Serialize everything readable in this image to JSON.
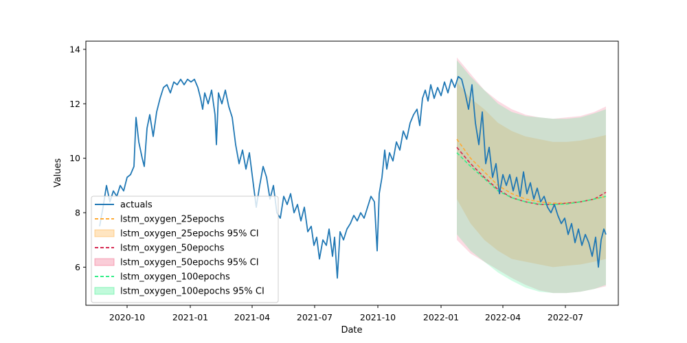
{
  "chart_data": {
    "type": "line",
    "title": "",
    "xlabel": "Date",
    "ylabel": "Values",
    "xlim": [
      "2020-08-02",
      "2022-09-16"
    ],
    "ylim": [
      4.6,
      14.3
    ],
    "x_ticks": [
      "2020-10",
      "2021-01",
      "2021-04",
      "2021-07",
      "2021-10",
      "2022-01",
      "2022-04",
      "2022-07"
    ],
    "y_ticks": [
      6,
      8,
      10,
      12,
      14
    ],
    "grid": false,
    "legend_position": "lower-left",
    "legend": [
      {
        "label": "actuals",
        "kind": "line",
        "color": "#1f77b4"
      },
      {
        "label": "lstm_oxygen_25epochs",
        "kind": "dash",
        "color": "#ffaa33"
      },
      {
        "label": "lstm_oxygen_25epochs 95% CI",
        "kind": "patch",
        "color": "#ffaa33"
      },
      {
        "label": "lstm_oxygen_50epochs",
        "kind": "dash",
        "color": "#d62750"
      },
      {
        "label": "lstm_oxygen_50epochs 95% CI",
        "kind": "patch",
        "color": "#f05a7e"
      },
      {
        "label": "lstm_oxygen_100epochs",
        "kind": "dash",
        "color": "#33ee88"
      },
      {
        "label": "lstm_oxygen_100epochs 95% CI",
        "kind": "patch",
        "color": "#33ee88"
      }
    ],
    "actuals": {
      "name": "actuals",
      "color": "#1f77b4",
      "points": [
        [
          "2020-08-22",
          7.5
        ],
        [
          "2020-08-27",
          8.2
        ],
        [
          "2020-09-01",
          9.0
        ],
        [
          "2020-09-06",
          8.4
        ],
        [
          "2020-09-11",
          8.8
        ],
        [
          "2020-09-16",
          8.6
        ],
        [
          "2020-09-21",
          9.0
        ],
        [
          "2020-09-26",
          8.8
        ],
        [
          "2020-10-01",
          9.3
        ],
        [
          "2020-10-06",
          9.4
        ],
        [
          "2020-10-11",
          9.7
        ],
        [
          "2020-10-14",
          11.5
        ],
        [
          "2020-10-18",
          10.6
        ],
        [
          "2020-10-23",
          10.0
        ],
        [
          "2020-10-26",
          9.7
        ],
        [
          "2020-10-30",
          11.1
        ],
        [
          "2020-11-03",
          11.6
        ],
        [
          "2020-11-08",
          10.8
        ],
        [
          "2020-11-13",
          11.7
        ],
        [
          "2020-11-18",
          12.2
        ],
        [
          "2020-11-23",
          12.6
        ],
        [
          "2020-11-28",
          12.7
        ],
        [
          "2020-12-03",
          12.4
        ],
        [
          "2020-12-08",
          12.8
        ],
        [
          "2020-12-13",
          12.7
        ],
        [
          "2020-12-18",
          12.9
        ],
        [
          "2020-12-23",
          12.7
        ],
        [
          "2020-12-28",
          12.9
        ],
        [
          "2021-01-02",
          12.8
        ],
        [
          "2021-01-07",
          12.9
        ],
        [
          "2021-01-12",
          12.6
        ],
        [
          "2021-01-16",
          12.2
        ],
        [
          "2021-01-19",
          11.8
        ],
        [
          "2021-01-22",
          12.4
        ],
        [
          "2021-01-27",
          12.0
        ],
        [
          "2021-02-01",
          12.5
        ],
        [
          "2021-02-06",
          11.6
        ],
        [
          "2021-02-08",
          10.5
        ],
        [
          "2021-02-11",
          12.4
        ],
        [
          "2021-02-16",
          12.0
        ],
        [
          "2021-02-21",
          12.5
        ],
        [
          "2021-02-26",
          11.9
        ],
        [
          "2021-03-03",
          11.5
        ],
        [
          "2021-03-08",
          10.5
        ],
        [
          "2021-03-13",
          9.8
        ],
        [
          "2021-03-18",
          10.3
        ],
        [
          "2021-03-23",
          9.6
        ],
        [
          "2021-03-28",
          10.2
        ],
        [
          "2021-04-02",
          9.2
        ],
        [
          "2021-04-07",
          8.2
        ],
        [
          "2021-04-12",
          9.0
        ],
        [
          "2021-04-17",
          9.7
        ],
        [
          "2021-04-22",
          9.3
        ],
        [
          "2021-04-27",
          8.5
        ],
        [
          "2021-05-02",
          9.0
        ],
        [
          "2021-05-07",
          8.0
        ],
        [
          "2021-05-12",
          7.8
        ],
        [
          "2021-05-17",
          8.6
        ],
        [
          "2021-05-22",
          8.3
        ],
        [
          "2021-05-27",
          8.7
        ],
        [
          "2021-06-01",
          8.0
        ],
        [
          "2021-06-06",
          8.3
        ],
        [
          "2021-06-11",
          7.7
        ],
        [
          "2021-06-16",
          8.2
        ],
        [
          "2021-06-21",
          7.3
        ],
        [
          "2021-06-26",
          7.5
        ],
        [
          "2021-06-30",
          6.8
        ],
        [
          "2021-07-04",
          7.1
        ],
        [
          "2021-07-08",
          6.3
        ],
        [
          "2021-07-13",
          7.0
        ],
        [
          "2021-07-18",
          6.8
        ],
        [
          "2021-07-22",
          7.4
        ],
        [
          "2021-07-27",
          6.4
        ],
        [
          "2021-07-30",
          7.1
        ],
        [
          "2021-08-03",
          5.6
        ],
        [
          "2021-08-07",
          7.3
        ],
        [
          "2021-08-12",
          7.0
        ],
        [
          "2021-08-17",
          7.4
        ],
        [
          "2021-08-22",
          7.6
        ],
        [
          "2021-08-27",
          7.9
        ],
        [
          "2021-09-01",
          7.7
        ],
        [
          "2021-09-06",
          8.0
        ],
        [
          "2021-09-11",
          7.8
        ],
        [
          "2021-09-16",
          8.2
        ],
        [
          "2021-09-21",
          8.6
        ],
        [
          "2021-09-26",
          8.4
        ],
        [
          "2021-09-30",
          6.6
        ],
        [
          "2021-10-03",
          8.7
        ],
        [
          "2021-10-07",
          9.3
        ],
        [
          "2021-10-11",
          10.3
        ],
        [
          "2021-10-14",
          9.6
        ],
        [
          "2021-10-18",
          10.2
        ],
        [
          "2021-10-23",
          9.9
        ],
        [
          "2021-10-28",
          10.6
        ],
        [
          "2021-11-02",
          10.3
        ],
        [
          "2021-11-07",
          11.0
        ],
        [
          "2021-11-12",
          10.7
        ],
        [
          "2021-11-17",
          11.3
        ],
        [
          "2021-11-22",
          11.6
        ],
        [
          "2021-11-27",
          11.8
        ],
        [
          "2021-12-01",
          11.2
        ],
        [
          "2021-12-05",
          12.2
        ],
        [
          "2021-12-09",
          12.5
        ],
        [
          "2021-12-13",
          12.1
        ],
        [
          "2021-12-17",
          12.7
        ],
        [
          "2021-12-22",
          12.2
        ],
        [
          "2021-12-27",
          12.6
        ],
        [
          "2022-01-01",
          12.3
        ],
        [
          "2022-01-06",
          12.8
        ],
        [
          "2022-01-11",
          12.4
        ],
        [
          "2022-01-16",
          12.9
        ],
        [
          "2022-01-21",
          12.6
        ],
        [
          "2022-01-26",
          13.0
        ],
        [
          "2022-01-31",
          12.9
        ],
        [
          "2022-02-05",
          12.4
        ],
        [
          "2022-02-10",
          11.8
        ],
        [
          "2022-02-15",
          12.7
        ],
        [
          "2022-02-20",
          11.3
        ],
        [
          "2022-02-25",
          10.5
        ],
        [
          "2022-03-02",
          11.7
        ],
        [
          "2022-03-07",
          9.8
        ],
        [
          "2022-03-12",
          10.4
        ],
        [
          "2022-03-17",
          9.3
        ],
        [
          "2022-03-22",
          9.8
        ],
        [
          "2022-03-27",
          8.7
        ],
        [
          "2022-04-01",
          9.4
        ],
        [
          "2022-04-06",
          9.0
        ],
        [
          "2022-04-11",
          9.4
        ],
        [
          "2022-04-16",
          8.8
        ],
        [
          "2022-04-21",
          9.3
        ],
        [
          "2022-04-26",
          8.6
        ],
        [
          "2022-05-01",
          9.5
        ],
        [
          "2022-05-06",
          8.7
        ],
        [
          "2022-05-11",
          9.1
        ],
        [
          "2022-05-16",
          8.5
        ],
        [
          "2022-05-21",
          8.9
        ],
        [
          "2022-05-26",
          8.4
        ],
        [
          "2022-05-31",
          8.6
        ],
        [
          "2022-06-05",
          8.2
        ],
        [
          "2022-06-10",
          8.0
        ],
        [
          "2022-06-15",
          8.3
        ],
        [
          "2022-06-20",
          7.9
        ],
        [
          "2022-06-25",
          7.6
        ],
        [
          "2022-06-30",
          7.8
        ],
        [
          "2022-07-05",
          7.2
        ],
        [
          "2022-07-10",
          7.6
        ],
        [
          "2022-07-15",
          6.9
        ],
        [
          "2022-07-20",
          7.4
        ],
        [
          "2022-07-25",
          6.8
        ],
        [
          "2022-07-30",
          7.2
        ],
        [
          "2022-08-04",
          6.9
        ],
        [
          "2022-08-09",
          6.4
        ],
        [
          "2022-08-14",
          7.1
        ],
        [
          "2022-08-18",
          6.0
        ],
        [
          "2022-08-22",
          7.0
        ],
        [
          "2022-08-26",
          7.4
        ],
        [
          "2022-08-29",
          7.2
        ]
      ]
    },
    "forecasts": [
      {
        "name": "lstm_oxygen_25epochs",
        "color": "#ffaa33",
        "x": [
          "2022-01-24",
          "2022-02-13",
          "2022-03-05",
          "2022-03-25",
          "2022-04-14",
          "2022-05-04",
          "2022-05-24",
          "2022-06-13",
          "2022-07-03",
          "2022-07-23",
          "2022-08-12",
          "2022-08-29"
        ],
        "values": [
          10.7,
          10.0,
          9.5,
          9.0,
          8.7,
          8.5,
          8.4,
          8.35,
          8.35,
          8.4,
          8.5,
          8.6
        ],
        "ci_lower": [
          8.5,
          7.6,
          7.0,
          6.6,
          6.3,
          6.2,
          6.1,
          6.0,
          6.05,
          6.1,
          6.2,
          6.3
        ],
        "ci_upper": [
          12.8,
          12.2,
          11.8,
          11.3,
          11.0,
          10.8,
          10.7,
          10.6,
          10.6,
          10.65,
          10.75,
          10.85
        ]
      },
      {
        "name": "lstm_oxygen_50epochs",
        "color": "#d62750",
        "x": [
          "2022-01-24",
          "2022-02-13",
          "2022-03-05",
          "2022-03-25",
          "2022-04-14",
          "2022-05-04",
          "2022-05-24",
          "2022-06-13",
          "2022-07-03",
          "2022-07-23",
          "2022-08-12",
          "2022-08-29"
        ],
        "values": [
          10.4,
          9.8,
          9.3,
          8.85,
          8.55,
          8.4,
          8.3,
          8.3,
          8.35,
          8.4,
          8.5,
          8.75
        ],
        "ci_lower": [
          7.0,
          6.5,
          6.2,
          5.9,
          5.6,
          5.35,
          5.15,
          5.05,
          5.05,
          5.1,
          5.2,
          5.3
        ],
        "ci_upper": [
          13.7,
          13.1,
          12.5,
          12.1,
          11.8,
          11.6,
          11.5,
          11.45,
          11.5,
          11.55,
          11.7,
          11.9
        ]
      },
      {
        "name": "lstm_oxygen_100epochs",
        "color": "#33ee88",
        "x": [
          "2022-01-24",
          "2022-02-13",
          "2022-03-05",
          "2022-03-25",
          "2022-04-14",
          "2022-05-04",
          "2022-05-24",
          "2022-06-13",
          "2022-07-03",
          "2022-07-23",
          "2022-08-12",
          "2022-08-29"
        ],
        "values": [
          10.2,
          9.7,
          9.25,
          8.8,
          8.55,
          8.4,
          8.32,
          8.3,
          8.32,
          8.4,
          8.5,
          8.6
        ],
        "ci_lower": [
          7.2,
          6.6,
          6.2,
          5.8,
          5.5,
          5.25,
          5.1,
          5.05,
          5.05,
          5.1,
          5.2,
          5.35
        ],
        "ci_upper": [
          13.6,
          13.0,
          12.5,
          12.0,
          11.7,
          11.55,
          11.5,
          11.45,
          11.45,
          11.5,
          11.65,
          11.8
        ]
      }
    ]
  }
}
